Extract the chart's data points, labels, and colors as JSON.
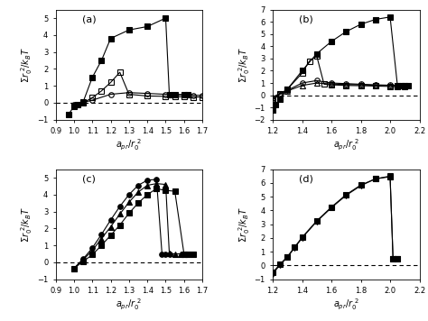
{
  "panel_a": {
    "label": "(a)",
    "xlim": [
      0.9,
      1.7
    ],
    "ylim": [
      -1,
      5.5
    ],
    "xticks": [
      0.9,
      1.0,
      1.1,
      1.2,
      1.3,
      1.4,
      1.5,
      1.6,
      1.7
    ],
    "yticks": [
      -1,
      0,
      1,
      2,
      3,
      4,
      5
    ],
    "xlabel": "$a_{pr}/r_0^{\\ 2}$",
    "ylabel": "$\\Sigma r_0^{\\ 2}/k_BT$",
    "series": [
      {
        "x": [
          0.97,
          1.0,
          1.02,
          1.05,
          1.1,
          1.15,
          1.2,
          1.3,
          1.4,
          1.5,
          1.52,
          1.55,
          1.6,
          1.62
        ],
        "y": [
          -0.7,
          -0.2,
          -0.1,
          0.05,
          1.5,
          2.5,
          3.8,
          4.3,
          4.5,
          5.0,
          0.5,
          0.48,
          0.48,
          0.48
        ],
        "marker": "s",
        "fillstyle": "full",
        "color": "black",
        "markersize": 4
      },
      {
        "x": [
          1.0,
          1.05,
          1.1,
          1.15,
          1.2,
          1.25,
          1.3,
          1.4,
          1.5,
          1.55,
          1.6,
          1.65,
          1.7
        ],
        "y": [
          -0.15,
          0.0,
          0.3,
          0.7,
          1.2,
          1.8,
          0.5,
          0.4,
          0.38,
          0.36,
          0.35,
          0.34,
          0.34
        ],
        "marker": "s",
        "fillstyle": "none",
        "color": "black",
        "markersize": 4
      },
      {
        "x": [
          1.0,
          1.05,
          1.1,
          1.2,
          1.3,
          1.4,
          1.5,
          1.55,
          1.6,
          1.65,
          1.7
        ],
        "y": [
          -0.1,
          0.02,
          0.15,
          0.5,
          0.6,
          0.55,
          0.5,
          0.48,
          0.46,
          0.44,
          0.44
        ],
        "marker": "o",
        "fillstyle": "none",
        "color": "black",
        "markersize": 4
      }
    ]
  },
  "panel_b": {
    "label": "(b)",
    "xlim": [
      1.2,
      2.2
    ],
    "ylim": [
      -2,
      7
    ],
    "xticks": [
      1.2,
      1.4,
      1.6,
      1.8,
      2.0,
      2.2
    ],
    "yticks": [
      -2,
      -1,
      0,
      1,
      2,
      3,
      4,
      5,
      6,
      7
    ],
    "xlabel": "$a_{pr}/r_0^{\\ 2}$",
    "ylabel": "$\\Sigma r_0^{\\ 2}/k_BT$",
    "series": [
      {
        "x": [
          1.2,
          1.22,
          1.25,
          1.3,
          1.4,
          1.5,
          1.6,
          1.7,
          1.8,
          1.9,
          2.0,
          2.05,
          2.08,
          2.1,
          2.12
        ],
        "y": [
          -1.2,
          -0.8,
          -0.3,
          0.5,
          2.0,
          3.4,
          4.4,
          5.2,
          5.8,
          6.2,
          6.4,
          0.8,
          0.75,
          0.75,
          0.75
        ],
        "marker": "s",
        "fillstyle": "full",
        "color": "black",
        "markersize": 4
      },
      {
        "x": [
          1.2,
          1.25,
          1.3,
          1.4,
          1.45,
          1.5,
          1.55,
          1.6,
          1.7,
          1.8,
          1.9,
          2.0,
          2.05,
          2.1
        ],
        "y": [
          -0.4,
          0.1,
          0.5,
          1.8,
          2.8,
          3.2,
          0.9,
          0.85,
          0.8,
          0.78,
          0.75,
          0.72,
          0.7,
          0.7
        ],
        "marker": "s",
        "fillstyle": "none",
        "color": "black",
        "markersize": 4
      },
      {
        "x": [
          1.2,
          1.25,
          1.3,
          1.4,
          1.5,
          1.6,
          1.7,
          1.8,
          1.9,
          2.0,
          2.05,
          2.1
        ],
        "y": [
          -0.3,
          0.1,
          0.4,
          1.0,
          1.2,
          1.0,
          0.95,
          0.9,
          0.85,
          0.82,
          0.8,
          0.78
        ],
        "marker": "o",
        "fillstyle": "none",
        "color": "black",
        "markersize": 4
      },
      {
        "x": [
          1.2,
          1.25,
          1.3,
          1.4,
          1.5,
          1.6,
          1.7,
          1.8,
          1.9,
          2.0,
          2.05,
          2.1
        ],
        "y": [
          -0.15,
          0.15,
          0.35,
          0.8,
          1.0,
          0.92,
          0.88,
          0.85,
          0.82,
          0.8,
          0.78,
          0.75
        ],
        "marker": "^",
        "fillstyle": "none",
        "color": "black",
        "markersize": 4
      }
    ]
  },
  "panel_c": {
    "label": "(c)",
    "xlim": [
      0.9,
      1.7
    ],
    "ylim": [
      -1,
      5.5
    ],
    "xticks": [
      0.9,
      1.0,
      1.1,
      1.2,
      1.3,
      1.4,
      1.5,
      1.6,
      1.7
    ],
    "yticks": [
      -1,
      0,
      1,
      2,
      3,
      4,
      5
    ],
    "xlabel": "$a_{pr}/r_0^{\\ 2}$",
    "ylabel": "$\\Sigma r_0^{\\ 2}/k_BT$",
    "series": [
      {
        "x": [
          1.0,
          1.05,
          1.1,
          1.15,
          1.2,
          1.25,
          1.3,
          1.35,
          1.4,
          1.45,
          1.48,
          1.5,
          1.52
        ],
        "y": [
          -0.35,
          0.2,
          0.85,
          1.65,
          2.5,
          3.3,
          4.0,
          4.55,
          4.85,
          4.9,
          0.5,
          0.48,
          0.48
        ],
        "marker": "o",
        "fillstyle": "full",
        "color": "black",
        "markersize": 4
      },
      {
        "x": [
          1.0,
          1.05,
          1.1,
          1.15,
          1.2,
          1.25,
          1.3,
          1.35,
          1.4,
          1.45,
          1.5,
          1.52,
          1.55,
          1.58
        ],
        "y": [
          -0.35,
          0.15,
          0.7,
          1.4,
          2.1,
          2.85,
          3.55,
          4.15,
          4.55,
          4.65,
          4.6,
          0.52,
          0.5,
          0.5
        ],
        "marker": "^",
        "fillstyle": "full",
        "color": "black",
        "markersize": 4
      },
      {
        "x": [
          1.0,
          1.05,
          1.1,
          1.15,
          1.2,
          1.25,
          1.3,
          1.35,
          1.4,
          1.45,
          1.5,
          1.55,
          1.6,
          1.62,
          1.65
        ],
        "y": [
          -0.35,
          0.05,
          0.45,
          1.0,
          1.6,
          2.2,
          2.9,
          3.5,
          4.0,
          4.35,
          4.25,
          4.2,
          0.5,
          0.48,
          0.48
        ],
        "marker": "s",
        "fillstyle": "full",
        "color": "black",
        "markersize": 4
      }
    ]
  },
  "panel_d": {
    "label": "(d)",
    "xlim": [
      1.2,
      2.2
    ],
    "ylim": [
      -1,
      7
    ],
    "xticks": [
      1.2,
      1.4,
      1.6,
      1.8,
      2.0,
      2.2
    ],
    "yticks": [
      -1,
      0,
      1,
      2,
      3,
      4,
      5,
      6,
      7
    ],
    "xlabel": "$a_{pr}/r_0^{\\ 2}$",
    "ylabel": "$\\Sigma r_0^{\\ 2}/k_BT$",
    "series": [
      {
        "x": [
          1.2,
          1.25,
          1.3,
          1.35,
          1.4,
          1.5,
          1.6,
          1.7,
          1.8,
          1.9,
          2.0,
          2.02,
          2.05
        ],
        "y": [
          -0.6,
          0.05,
          0.6,
          1.3,
          2.0,
          3.2,
          4.2,
          5.1,
          5.8,
          6.3,
          6.5,
          0.5,
          0.48
        ],
        "marker": "v",
        "fillstyle": "full",
        "color": "black",
        "markersize": 4
      },
      {
        "x": [
          1.2,
          1.25,
          1.3,
          1.35,
          1.4,
          1.5,
          1.6,
          1.7,
          1.8,
          1.9,
          2.0,
          2.02,
          2.05
        ],
        "y": [
          -0.5,
          0.1,
          0.65,
          1.35,
          2.05,
          3.25,
          4.25,
          5.15,
          5.85,
          6.3,
          6.45,
          0.5,
          0.48
        ],
        "marker": "s",
        "fillstyle": "full",
        "color": "black",
        "markersize": 4
      }
    ]
  }
}
